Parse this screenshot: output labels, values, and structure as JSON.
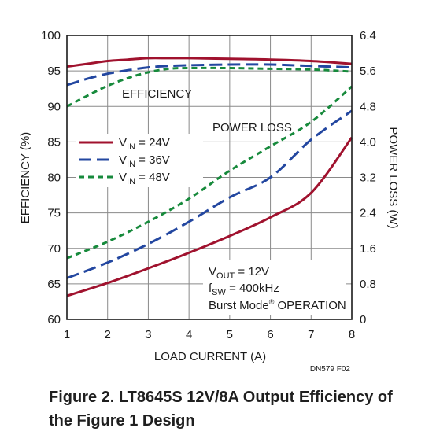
{
  "chart_data": {
    "type": "line",
    "xlabel": "LOAD CURRENT (A)",
    "ylabel_left": "EFFICIENCY (%)",
    "ylabel_right": "POWER LOSS (W)",
    "xlim": [
      1,
      8
    ],
    "ylim_left": [
      60,
      100
    ],
    "ylim_right": [
      0,
      6.4
    ],
    "x_ticks": [
      "1",
      "2",
      "3",
      "4",
      "5",
      "6",
      "7",
      "8"
    ],
    "y_left_ticks": [
      "100",
      "95",
      "90",
      "85",
      "80",
      "75",
      "70",
      "65",
      "60"
    ],
    "y_right_ticks": [
      "6.4",
      "5.6",
      "4.8",
      "4.0",
      "3.2",
      "2.4",
      "1.6",
      "0.8",
      "0"
    ],
    "grid": true,
    "annotations": {
      "efficiency": "EFFICIENCY",
      "power_loss": "POWER LOSS",
      "vout": "VOUT = 12V",
      "fsw": "fSW = 400kHz",
      "burst": "Burst Mode® OPERATION"
    },
    "legend": [
      {
        "label": "VIN = 24V",
        "prefix": "V",
        "sub": "IN",
        "value": " = 24V",
        "color": "#a0122e",
        "dash": "solid"
      },
      {
        "label": "VIN = 36V",
        "prefix": "V",
        "sub": "IN",
        "value": " = 36V",
        "color": "#2347a0",
        "dash": "long-dash"
      },
      {
        "label": "VIN = 48V",
        "prefix": "V",
        "sub": "IN",
        "value": " = 48V",
        "color": "#178a3c",
        "dash": "short-dash"
      }
    ],
    "efficiency_series": [
      {
        "name": "VIN = 24V",
        "x": [
          1,
          1.5,
          2,
          2.5,
          3,
          3.5,
          4,
          5,
          6,
          7,
          8
        ],
        "y": [
          95.6,
          96.0,
          96.4,
          96.6,
          96.8,
          96.8,
          96.8,
          96.7,
          96.6,
          96.4,
          96.0
        ]
      },
      {
        "name": "VIN = 36V",
        "x": [
          1,
          1.5,
          2,
          2.5,
          3,
          3.5,
          4,
          5,
          6,
          7,
          8
        ],
        "y": [
          93.0,
          93.9,
          94.6,
          95.1,
          95.5,
          95.7,
          95.8,
          95.9,
          95.9,
          95.7,
          95.5
        ]
      },
      {
        "name": "VIN = 48V",
        "x": [
          1,
          1.5,
          2,
          2.5,
          3,
          3.5,
          4,
          5,
          6,
          7,
          8
        ],
        "y": [
          90.0,
          91.5,
          92.9,
          94.0,
          94.8,
          95.3,
          95.4,
          95.4,
          95.3,
          95.2,
          94.9
        ]
      }
    ],
    "power_loss_series": [
      {
        "name": "VIN = 24V",
        "x": [
          1,
          2,
          3,
          4,
          5,
          6,
          7,
          8
        ],
        "y": [
          0.53,
          0.82,
          1.15,
          1.5,
          1.88,
          2.3,
          2.85,
          4.1
        ]
      },
      {
        "name": "VIN = 36V",
        "x": [
          1,
          2,
          3,
          4,
          5,
          6,
          7,
          8
        ],
        "y": [
          0.93,
          1.28,
          1.7,
          2.2,
          2.75,
          3.2,
          4.05,
          4.7
        ]
      },
      {
        "name": "VIN = 48V",
        "x": [
          1,
          2,
          3,
          4,
          5,
          6,
          7,
          8
        ],
        "y": [
          1.38,
          1.75,
          2.2,
          2.72,
          3.35,
          3.9,
          4.45,
          5.25
        ]
      }
    ],
    "figure_id": "DN579 F02"
  },
  "caption": {
    "line1": "Figure 2. LT8645S 12V/8A Output Efficiency of",
    "line2": "the Figure 1 Design"
  }
}
